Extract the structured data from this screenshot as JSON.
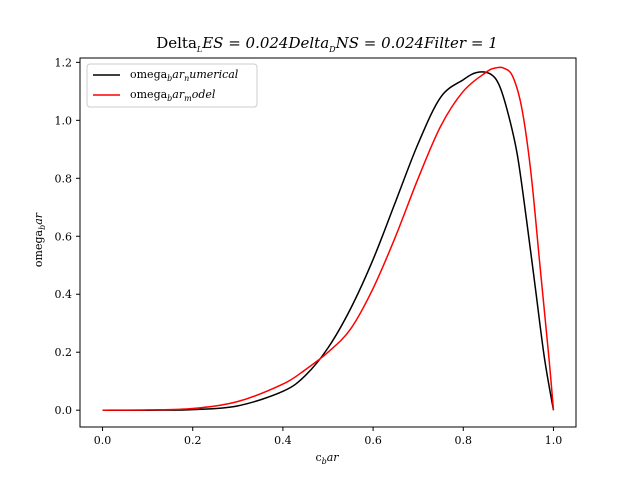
{
  "chart_data": {
    "type": "line",
    "title": {
      "main": "Delta",
      "main_sub": "L",
      "main_tail": "ES = 0.024Delta",
      "second_sub": "D",
      "second_tail": "NS = 0.024Filter = 1"
    },
    "xlabel": {
      "base": "c",
      "sub": "b",
      "tail": "ar"
    },
    "ylabel": {
      "base": "omega",
      "sub": "b",
      "tail": "ar"
    },
    "xlim": [
      -0.05,
      1.05
    ],
    "ylim": [
      -0.058,
      1.215
    ],
    "xticks": [
      "0.0",
      "0.2",
      "0.4",
      "0.6",
      "0.8",
      "1.0"
    ],
    "yticks": [
      "0.0",
      "0.2",
      "0.4",
      "0.6",
      "0.8",
      "1.0",
      "1.2"
    ],
    "legend_position": "top-left",
    "series": [
      {
        "name": {
          "base": "omega",
          "sub1": "b",
          "mid": "ar",
          "sub2": "n",
          "tail": "umerical"
        },
        "color": "#000000",
        "x": [
          0.0,
          0.1,
          0.2,
          0.3,
          0.4,
          0.45,
          0.5,
          0.55,
          0.6,
          0.65,
          0.7,
          0.75,
          0.8,
          0.83,
          0.86,
          0.88,
          0.9,
          0.92,
          0.94,
          0.96,
          0.98,
          1.0
        ],
        "values": [
          0.0,
          0.0,
          0.002,
          0.015,
          0.065,
          0.12,
          0.215,
          0.35,
          0.52,
          0.72,
          0.92,
          1.08,
          1.14,
          1.165,
          1.16,
          1.12,
          1.02,
          0.88,
          0.66,
          0.42,
          0.18,
          0.0
        ]
      },
      {
        "name": {
          "base": "omega",
          "sub1": "b",
          "mid": "ar",
          "sub2": "m",
          "tail": "odel"
        },
        "color": "#ff0000",
        "x": [
          0.0,
          0.1,
          0.2,
          0.3,
          0.4,
          0.45,
          0.5,
          0.55,
          0.6,
          0.65,
          0.7,
          0.75,
          0.8,
          0.85,
          0.87,
          0.89,
          0.91,
          0.93,
          0.95,
          0.97,
          0.99,
          1.0
        ],
        "values": [
          0.0,
          0.001,
          0.006,
          0.03,
          0.09,
          0.14,
          0.2,
          0.28,
          0.42,
          0.6,
          0.8,
          0.98,
          1.1,
          1.165,
          1.18,
          1.18,
          1.15,
          1.04,
          0.82,
          0.5,
          0.18,
          0.0
        ]
      }
    ]
  }
}
